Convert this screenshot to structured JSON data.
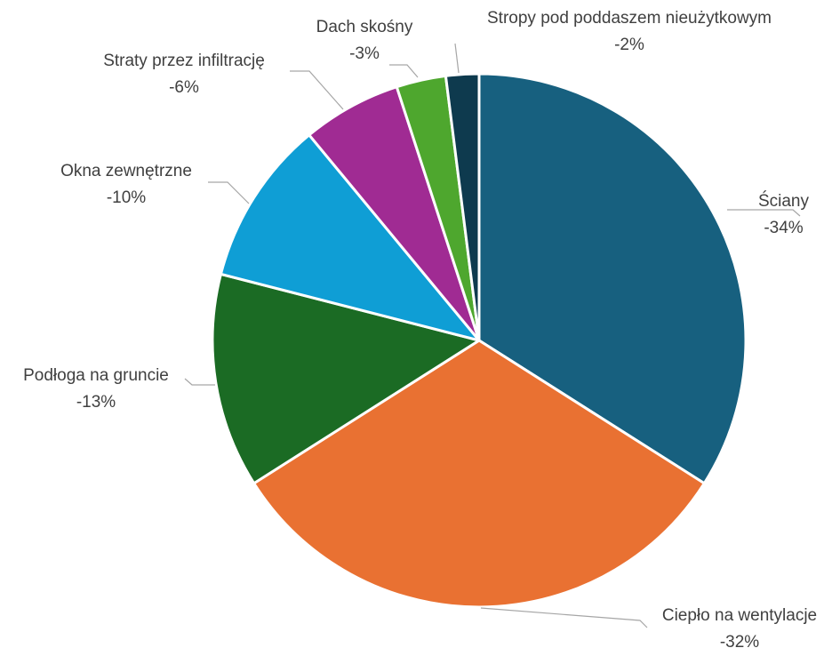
{
  "chart_data": {
    "type": "pie",
    "title": "",
    "start_angle_deg": 0,
    "direction": "clockwise",
    "slices": [
      {
        "label": "Ściany",
        "display": "-34%",
        "value": 34,
        "color": "#17607f"
      },
      {
        "label": "Ciepło na wentylacje",
        "display": "-32%",
        "value": 32,
        "color": "#e97132"
      },
      {
        "label": "Podłoga na gruncie",
        "display": "-13%",
        "value": 13,
        "color": "#1b6b24"
      },
      {
        "label": "Okna zewnętrzne",
        "display": "-10%",
        "value": 10,
        "color": "#0f9ed5"
      },
      {
        "label": "Straty przez infiltrację",
        "display": "-6%",
        "value": 6,
        "color": "#a02b93"
      },
      {
        "label": "Dach skośny",
        "display": "-3%",
        "value": 3,
        "color": "#4ea72e"
      },
      {
        "label": "Stropy pod poddaszem nieużytkowym",
        "display": "-2%",
        "value": 2,
        "color": "#0e3a4e"
      }
    ]
  }
}
